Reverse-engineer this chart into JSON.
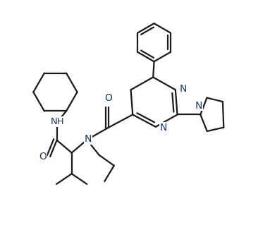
{
  "bg_color": "#ffffff",
  "line_color": "#1a1a1a",
  "label_color": "#1a3a6b",
  "line_width": 1.6,
  "dbo": 0.018,
  "fs": 10.0,
  "xlim": [
    -0.05,
    1.05
  ],
  "ylim": [
    -0.08,
    1.12
  ]
}
